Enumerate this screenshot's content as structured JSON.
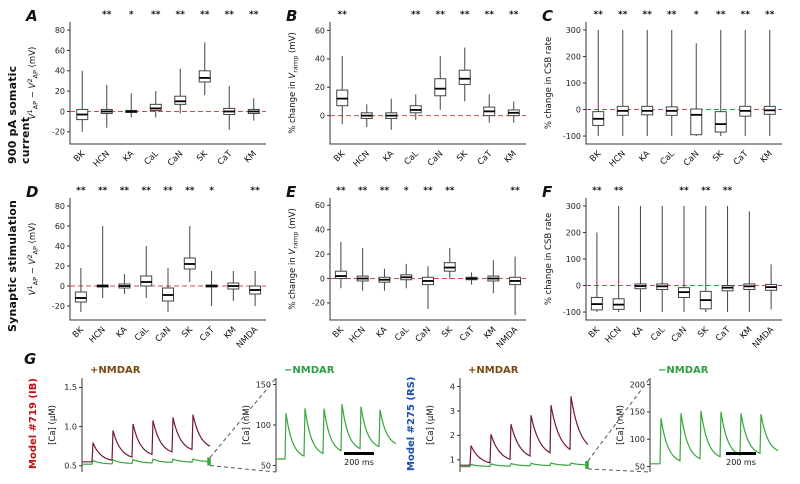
{
  "row_labels": [
    "900 pA somatic current",
    "Synaptic stimulation"
  ],
  "chart_data": [
    {
      "type": "box",
      "panel": "A",
      "row": 0,
      "col": 0,
      "ylabel": [
        {
          "t": "V",
          "i": 1
        },
        {
          "t": "1",
          "sup": 1
        },
        {
          "t": "AP",
          "sub": 1
        },
        {
          "t": " − "
        },
        {
          "t": "V",
          "i": 1
        },
        {
          "t": "2",
          "sup": 1
        },
        {
          "t": "AP",
          "sub": 1
        },
        {
          "t": " (mV)"
        }
      ],
      "ylim": [
        -32,
        88
      ],
      "yticks": [
        -20,
        0,
        20,
        40,
        60,
        80
      ],
      "zero_line": true,
      "categories": [
        "BK",
        "HCN",
        "KA",
        "CaL",
        "CaN",
        "SK",
        "CaT",
        "KM"
      ],
      "stars": [
        "",
        "**",
        "*",
        "**",
        "**",
        "**",
        "**",
        "**"
      ],
      "boxes": [
        [
          -20,
          -8,
          -3,
          2,
          40
        ],
        [
          -16,
          -2,
          0,
          2,
          26
        ],
        [
          -6,
          -1,
          0,
          1,
          18
        ],
        [
          -6,
          1,
          3,
          7,
          20
        ],
        [
          -2,
          7,
          10,
          15,
          42
        ],
        [
          16,
          29,
          33,
          40,
          68
        ],
        [
          -18,
          -3,
          0,
          3,
          25
        ],
        [
          -9,
          -2,
          0,
          2,
          13
        ]
      ]
    },
    {
      "type": "box",
      "panel": "B",
      "row": 0,
      "col": 1,
      "ylabel": [
        {
          "t": "% change in "
        },
        {
          "t": "V",
          "i": 1
        },
        {
          "t": "ramp",
          "sub": 1
        },
        {
          "t": " (mV)"
        }
      ],
      "ylim": [
        -20,
        66
      ],
      "yticks": [
        0,
        20,
        40,
        60
      ],
      "zero_line": true,
      "categories": [
        "BK",
        "HCN",
        "KA",
        "CaL",
        "CaN",
        "SK",
        "CaT",
        "KM"
      ],
      "stars": [
        "**",
        "",
        "",
        "**",
        "**",
        "**",
        "**",
        "**"
      ],
      "boxes": [
        [
          -6,
          7,
          12,
          18,
          42
        ],
        [
          -8,
          -2,
          0,
          2,
          8
        ],
        [
          -10,
          -2,
          0,
          2,
          12
        ],
        [
          -3,
          2,
          4,
          7,
          15
        ],
        [
          4,
          14,
          19,
          26,
          42
        ],
        [
          10,
          22,
          26,
          32,
          48
        ],
        [
          -5,
          0,
          3,
          6,
          15
        ],
        [
          -5,
          0,
          2,
          4,
          10
        ]
      ]
    },
    {
      "type": "box",
      "panel": "C",
      "row": 0,
      "col": 2,
      "ylabel": [
        {
          "t": "% change in CSB rate"
        }
      ],
      "ylim": [
        -130,
        330
      ],
      "yticks": [
        -100,
        0,
        100,
        200,
        300
      ],
      "zero_line": true,
      "categories": [
        "BK",
        "HCN",
        "KA",
        "CaL",
        "CaN",
        "SK",
        "CaT",
        "KM"
      ],
      "stars": [
        "**",
        "**",
        "**",
        "**",
        "*",
        "**",
        "**",
        "**"
      ],
      "boxes": [
        [
          -100,
          -60,
          -35,
          -8,
          300
        ],
        [
          -100,
          -22,
          -5,
          12,
          300
        ],
        [
          -100,
          -20,
          -5,
          12,
          300
        ],
        [
          -100,
          -22,
          -5,
          10,
          300
        ],
        [
          -100,
          -95,
          -20,
          2,
          250
        ],
        [
          -100,
          -85,
          -55,
          -8,
          300
        ],
        [
          -100,
          -25,
          -5,
          12,
          300
        ],
        [
          -100,
          -18,
          -3,
          12,
          300
        ]
      ]
    },
    {
      "type": "box",
      "panel": "D",
      "row": 1,
      "col": 0,
      "ylabel": [
        {
          "t": "V",
          "i": 1
        },
        {
          "t": "1",
          "sup": 1
        },
        {
          "t": "AP",
          "sub": 1
        },
        {
          "t": " − "
        },
        {
          "t": "V",
          "i": 1
        },
        {
          "t": "2",
          "sup": 1
        },
        {
          "t": "AP",
          "sub": 1
        },
        {
          "t": " (mV)"
        }
      ],
      "ylim": [
        -34,
        88
      ],
      "yticks": [
        -20,
        0,
        20,
        40,
        60,
        80
      ],
      "zero_line": true,
      "categories": [
        "BK",
        "HCN",
        "KA",
        "CaL",
        "CaN",
        "SK",
        "CaT",
        "KM",
        "NMDA"
      ],
      "stars": [
        "**",
        "**",
        "**",
        "**",
        "**",
        "**",
        "*",
        "",
        "**"
      ],
      "boxes": [
        [
          -26,
          -16,
          -12,
          -6,
          18
        ],
        [
          -12,
          -1,
          0,
          1,
          60
        ],
        [
          -8,
          -2,
          0,
          2,
          12
        ],
        [
          -12,
          0,
          4,
          10,
          40
        ],
        [
          -26,
          -15,
          -9,
          -2,
          18
        ],
        [
          4,
          17,
          22,
          28,
          60
        ],
        [
          -20,
          -1,
          0,
          1,
          15
        ],
        [
          -15,
          -3,
          0,
          3,
          15
        ],
        [
          -20,
          -8,
          -4,
          0,
          15
        ]
      ]
    },
    {
      "type": "box",
      "panel": "E",
      "row": 1,
      "col": 1,
      "ylabel": [
        {
          "t": "% change in "
        },
        {
          "t": "V",
          "i": 1
        },
        {
          "t": "ramp",
          "sub": 1
        },
        {
          "t": " (mV)"
        }
      ],
      "ylim": [
        -34,
        66
      ],
      "yticks": [
        -20,
        0,
        20,
        40,
        60
      ],
      "zero_line": true,
      "categories": [
        "BK",
        "HCN",
        "KA",
        "CaL",
        "CaN",
        "SK",
        "CaT",
        "KM",
        "NMDA"
      ],
      "stars": [
        "**",
        "**",
        "**",
        "*",
        "**",
        "**",
        "",
        "",
        "**"
      ],
      "boxes": [
        [
          -8,
          0,
          2,
          6,
          30
        ],
        [
          -10,
          -2,
          0,
          2,
          25
        ],
        [
          -10,
          -3,
          -1,
          1,
          8
        ],
        [
          -8,
          -1,
          1,
          3,
          12
        ],
        [
          -25,
          -5,
          -2,
          1,
          10
        ],
        [
          0,
          6,
          9,
          13,
          25
        ],
        [
          -5,
          -1,
          0,
          1,
          5
        ],
        [
          -12,
          -2,
          0,
          2,
          15
        ],
        [
          -30,
          -5,
          -2,
          1,
          18
        ]
      ]
    },
    {
      "type": "box",
      "panel": "F",
      "row": 1,
      "col": 2,
      "ylabel": [
        {
          "t": "% change in CSB rate"
        }
      ],
      "ylim": [
        -130,
        330
      ],
      "yticks": [
        -100,
        0,
        100,
        200,
        300
      ],
      "zero_line": true,
      "categories": [
        "BK",
        "HCN",
        "KA",
        "CaL",
        "CaN",
        "SK",
        "CaT",
        "KM",
        "NMDA"
      ],
      "stars": [
        "**",
        "**",
        "",
        "",
        "**",
        "**",
        "**",
        "",
        ""
      ],
      "boxes": [
        [
          -100,
          -92,
          -70,
          -45,
          200
        ],
        [
          -100,
          -90,
          -72,
          -50,
          300
        ],
        [
          -100,
          -12,
          -2,
          6,
          300
        ],
        [
          -100,
          -15,
          -3,
          6,
          300
        ],
        [
          -100,
          -45,
          -25,
          -8,
          300
        ],
        [
          -100,
          -88,
          -55,
          -22,
          300
        ],
        [
          -100,
          -20,
          -8,
          0,
          300
        ],
        [
          -100,
          -15,
          -3,
          6,
          280
        ],
        [
          -90,
          -18,
          -6,
          4,
          80
        ]
      ]
    },
    {
      "type": "line",
      "panel": "G",
      "models": [
        {
          "label": "Model #719 (IB)",
          "color": "#c41111"
        },
        {
          "label": "Model #275 (RS)",
          "color": "#1a4fae"
        }
      ],
      "subplots": [
        {
          "ylabel": "[Ca] (μM)",
          "yticks": [
            0.5,
            1.0,
            1.5
          ],
          "tick_labels": [
            "0.5",
            "1.0",
            "1.5"
          ],
          "ylim": [
            0.42,
            1.62
          ],
          "condition": "+NMDAR",
          "condition_color": "#7a4a14",
          "traces": [
            {
              "color": "#6e1a2e",
              "baseline": 0.55,
              "floor_rise": 0.03,
              "peaks": [
                0.82,
                0.99,
                1.08,
                1.13,
                1.17,
                1.21
              ],
              "tau": 0.06
            },
            {
              "color": "#38a43c",
              "baseline": 0.52,
              "floor_rise": 0.006,
              "peaks": [
                0.57,
                0.58,
                0.585,
                0.59,
                0.59,
                0.59
              ],
              "tau": 0.06
            }
          ],
          "end_marker": true
        },
        {
          "ylabel": "[Ca] (nM)",
          "yticks": [
            50,
            100,
            150
          ],
          "tick_labels": [
            "50",
            "100",
            "150"
          ],
          "ylim": [
            42,
            158
          ],
          "condition": "−NMDAR",
          "condition_color": "#2d9e44",
          "traces": [
            {
              "color": "#38a43c",
              "baseline": 58,
              "floor_rise": 3,
              "peaks": [
                118,
                127,
                129,
                128,
                127,
                125
              ],
              "tau": 0.055
            }
          ],
          "scalebar": "200 ms"
        },
        {
          "ylabel": "[Ca] (μM)",
          "yticks": [
            1,
            2,
            3,
            4
          ],
          "tick_labels": [
            "1",
            "2",
            "3",
            "4"
          ],
          "ylim": [
            0.5,
            4.35
          ],
          "condition": "+NMDAR",
          "condition_color": "#7a4a14",
          "traces": [
            {
              "color": "#6e1a2e",
              "baseline": 0.78,
              "floor_rise": 0.1,
              "peaks": [
                1.65,
                2.15,
                2.6,
                3.0,
                3.45,
                3.85
              ],
              "tau": 0.07
            },
            {
              "color": "#38a43c",
              "baseline": 0.72,
              "floor_rise": 0.012,
              "peaks": [
                0.82,
                0.84,
                0.86,
                0.87,
                0.88,
                0.88
              ],
              "tau": 0.06
            }
          ],
          "end_marker": true
        },
        {
          "ylabel": "[Ca] (nM)",
          "yticks": [
            50,
            100,
            150,
            200
          ],
          "tick_labels": [
            "50",
            "100",
            "150",
            "200"
          ],
          "ylim": [
            40,
            212
          ],
          "condition": "−NMDAR",
          "condition_color": "#2d9e44",
          "traces": [
            {
              "color": "#38a43c",
              "baseline": 55,
              "floor_rise": 3.5,
              "peaks": [
                148,
                158,
                163,
                161,
                158,
                156
              ],
              "tau": 0.055
            }
          ],
          "scalebar": "200 ms"
        }
      ]
    }
  ]
}
